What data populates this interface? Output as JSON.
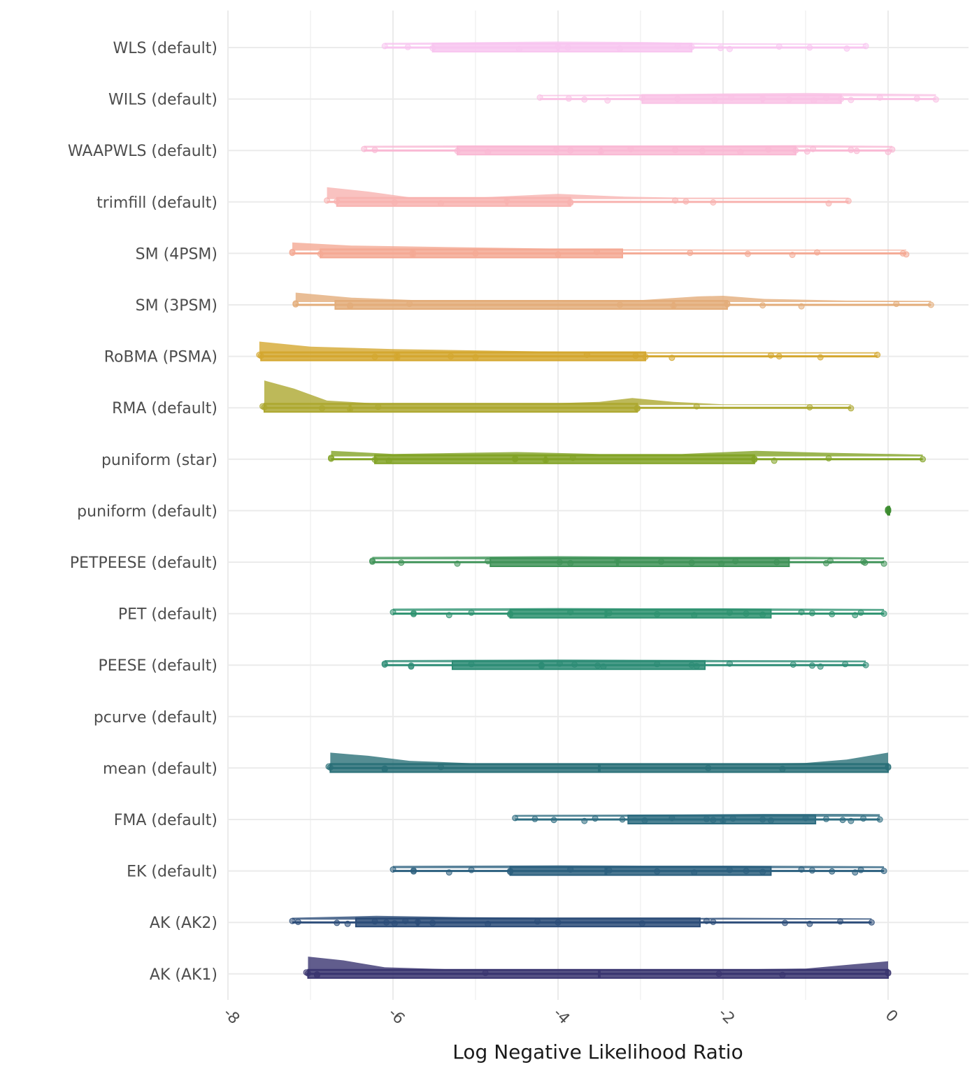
{
  "chart_data": {
    "type": "raincloud",
    "title": "",
    "xlabel": "Log Negative Likelihood Ratio",
    "ylabel": "",
    "xlim": [
      -8,
      1
    ],
    "x_ticks": [
      -8,
      -6,
      -4,
      -2,
      0
    ],
    "x_tick_labels": [
      "-8",
      "-6",
      "-4",
      "-2",
      "0"
    ],
    "grid": true,
    "legend": "none",
    "categories": [
      "WLS (default)",
      "WILS (default)",
      "WAAPWLS (default)",
      "trimfill (default)",
      "SM (4PSM)",
      "SM (3PSM)",
      "RoBMA (PSMA)",
      "RMA (default)",
      "puniform (star)",
      "puniform (default)",
      "PETPEESE (default)",
      "PET (default)",
      "PEESE (default)",
      "pcurve (default)",
      "mean (default)",
      "FMA (default)",
      "EK (default)",
      "AK (AK2)",
      "AK (AK1)"
    ],
    "series": [
      {
        "name": "WLS (default)",
        "color": "#F8C6F0",
        "min": -6.1,
        "q1": -5.52,
        "median": -4.0,
        "q3": -2.38,
        "max": -0.27,
        "points": [
          -6.1,
          -5.82,
          -5.52,
          -4.47,
          -4.0,
          -3.88,
          -3.25,
          -2.55,
          -2.38,
          -2.03,
          -1.92,
          -1.32,
          -0.95,
          -0.5,
          -0.27
        ],
        "density": [
          [
            -6.1,
            0.15
          ],
          [
            -5.0,
            0.2
          ],
          [
            -4.0,
            0.26
          ],
          [
            -3.0,
            0.22
          ],
          [
            -2.0,
            0.12
          ],
          [
            -1.0,
            0.1
          ],
          [
            -0.27,
            0.08
          ]
        ]
      },
      {
        "name": "WILS (default)",
        "color": "#F9C2E5",
        "min": -4.22,
        "q1": -2.98,
        "median": -1.52,
        "q3": -0.57,
        "max": 0.58,
        "points": [
          -4.22,
          -3.87,
          -3.68,
          -3.4,
          -2.98,
          -2.55,
          -2.1,
          -1.9,
          -1.52,
          -1.2,
          -0.9,
          -0.75,
          -0.57,
          -0.45,
          -0.1,
          0.35,
          0.58
        ],
        "density": [
          [
            -4.22,
            0.1
          ],
          [
            -3.0,
            0.15
          ],
          [
            -2.0,
            0.22
          ],
          [
            -1.0,
            0.26
          ],
          [
            0.0,
            0.2
          ],
          [
            0.58,
            0.16
          ]
        ]
      },
      {
        "name": "WAAPWLS (default)",
        "color": "#F9B8D4",
        "min": -6.35,
        "q1": -5.22,
        "median": -3.48,
        "q3": -1.12,
        "max": 0.05,
        "points": [
          -6.35,
          -6.22,
          -5.22,
          -4.85,
          -4.02,
          -3.85,
          -3.48,
          -3.12,
          -2.58,
          -2.25,
          -1.79,
          -1.45,
          -1.12,
          -0.98,
          -0.91,
          -0.45,
          -0.38,
          0.0,
          0.05
        ],
        "density": [
          [
            -6.35,
            0.15
          ],
          [
            -5.0,
            0.18
          ],
          [
            -4.0,
            0.17
          ],
          [
            -3.0,
            0.17
          ],
          [
            -2.0,
            0.18
          ],
          [
            -1.0,
            0.2
          ],
          [
            0.05,
            0.14
          ]
        ]
      },
      {
        "name": "trimfill (default)",
        "color": "#F8B3B0",
        "min": -6.8,
        "q1": -6.68,
        "median": -4.62,
        "q3": -3.85,
        "max": -0.48,
        "points": [
          -6.8,
          -6.68,
          -5.98,
          -5.42,
          -4.62,
          -3.85,
          -3.85,
          -2.58,
          -2.45,
          -2.12,
          -0.72,
          -0.48
        ],
        "density": [
          [
            -6.8,
            0.95
          ],
          [
            -6.3,
            0.6
          ],
          [
            -5.8,
            0.15
          ],
          [
            -5.0,
            0.12
          ],
          [
            -4.0,
            0.42
          ],
          [
            -3.2,
            0.2
          ],
          [
            -2.5,
            0.12
          ],
          [
            -1.5,
            0.12
          ],
          [
            -0.48,
            0.12
          ]
        ]
      },
      {
        "name": "SM (4PSM)",
        "color": "#F4A994",
        "min": -7.22,
        "q1": -6.88,
        "median": -5.76,
        "q3": -3.22,
        "max": 0.22,
        "points": [
          -7.22,
          -7.22,
          -6.88,
          -5.76,
          -5.76,
          -5.0,
          -4.0,
          -3.53,
          -2.4,
          -1.7,
          -1.16,
          -0.86,
          0.18,
          0.22
        ],
        "density": [
          [
            -7.22,
            0.65
          ],
          [
            -6.5,
            0.4
          ],
          [
            -5.5,
            0.3
          ],
          [
            -4.5,
            0.2
          ],
          [
            -3.5,
            0.1
          ],
          [
            -2.0,
            0.08
          ],
          [
            0.22,
            0.08
          ]
        ]
      },
      {
        "name": "SM (3PSM)",
        "color": "#E3AD7A",
        "min": -7.18,
        "q1": -6.7,
        "median": -2.6,
        "q3": -1.95,
        "max": 0.52,
        "points": [
          -7.18,
          -7.18,
          -6.52,
          -6.52,
          -5.8,
          -3.25,
          -2.6,
          -1.95,
          -1.95,
          -1.52,
          -1.05,
          0.1,
          0.52
        ],
        "density": [
          [
            -7.18,
            0.75
          ],
          [
            -6.5,
            0.35
          ],
          [
            -5.5,
            0.1
          ],
          [
            -4.0,
            0.05
          ],
          [
            -3.0,
            0.15
          ],
          [
            -2.3,
            0.45
          ],
          [
            -2.0,
            0.5
          ],
          [
            -1.5,
            0.25
          ],
          [
            -0.5,
            0.12
          ],
          [
            0.52,
            0.1
          ]
        ]
      },
      {
        "name": "RoBMA (PSMA)",
        "color": "#D4A72F",
        "min": -7.62,
        "q1": -7.6,
        "median": -5.95,
        "q3": -2.94,
        "max": -0.13,
        "points": [
          -7.62,
          -7.6,
          -6.22,
          -5.95,
          -5.95,
          -5.3,
          -5.0,
          -3.65,
          -3.06,
          -2.94,
          -2.62,
          -1.42,
          -1.32,
          -0.82,
          -0.13
        ],
        "density": [
          [
            -7.62,
            0.95
          ],
          [
            -7.0,
            0.55
          ],
          [
            -6.0,
            0.35
          ],
          [
            -5.0,
            0.25
          ],
          [
            -4.0,
            0.15
          ],
          [
            -3.0,
            0.1
          ],
          [
            -1.5,
            0.1
          ],
          [
            -0.13,
            0.1
          ]
        ]
      },
      {
        "name": "RMA (default)",
        "color": "#ADA830",
        "min": -7.58,
        "q1": -7.56,
        "median": -6.52,
        "q3": -3.04,
        "max": -0.45,
        "points": [
          -7.58,
          -7.56,
          -6.86,
          -6.52,
          -6.18,
          -3.04,
          -3.04,
          -2.32,
          -0.95,
          -0.45
        ],
        "density": [
          [
            -7.56,
            1.95
          ],
          [
            -7.2,
            1.3
          ],
          [
            -6.8,
            0.35
          ],
          [
            -6.0,
            0.05
          ],
          [
            -4.5,
            0.05
          ],
          [
            -3.5,
            0.25
          ],
          [
            -3.1,
            0.55
          ],
          [
            -2.6,
            0.25
          ],
          [
            -2.0,
            0.05
          ],
          [
            -0.45,
            0.05
          ]
        ]
      },
      {
        "name": "puniform (star)",
        "color": "#82A326",
        "min": -6.75,
        "q1": -6.22,
        "median": -4.15,
        "q3": -1.62,
        "max": 0.42,
        "points": [
          -6.75,
          -6.75,
          -6.22,
          -6.05,
          -4.52,
          -4.52,
          -4.15,
          -3.82,
          -1.62,
          -1.62,
          -1.38,
          -0.72,
          0.42
        ],
        "density": [
          [
            -6.75,
            0.45
          ],
          [
            -6.0,
            0.2
          ],
          [
            -5.0,
            0.3
          ],
          [
            -4.5,
            0.35
          ],
          [
            -3.5,
            0.2
          ],
          [
            -2.5,
            0.2
          ],
          [
            -1.6,
            0.45
          ],
          [
            -0.8,
            0.3
          ],
          [
            0.42,
            0.15
          ]
        ]
      },
      {
        "name": "puniform (default)",
        "color": "#3D8C30",
        "min": 0.0,
        "q1": 0.0,
        "median": 0.0,
        "q3": 0.0,
        "max": 0.0,
        "points": [
          0.0,
          0.0,
          0.0
        ],
        "density": []
      },
      {
        "name": "PETPEESE (default)",
        "color": "#3F9358",
        "min": -6.25,
        "q1": -4.82,
        "median": -3.28,
        "q3": -1.2,
        "max": -0.05,
        "points": [
          -6.25,
          -6.25,
          -5.9,
          -5.22,
          -4.85,
          -3.98,
          -3.85,
          -3.28,
          -2.75,
          -2.38,
          -2.02,
          -1.85,
          -1.35,
          -0.75,
          -0.7,
          -0.3,
          -0.28,
          -0.05
        ],
        "density": [
          [
            -6.25,
            0.2
          ],
          [
            -5.0,
            0.22
          ],
          [
            -4.0,
            0.26
          ],
          [
            -3.0,
            0.22
          ],
          [
            -2.0,
            0.2
          ],
          [
            -1.0,
            0.2
          ],
          [
            -0.05,
            0.16
          ]
        ]
      },
      {
        "name": "PET (default)",
        "color": "#2E9270",
        "min": -6.0,
        "q1": -4.58,
        "median": -3.42,
        "q3": -1.42,
        "max": -0.05,
        "points": [
          -6.0,
          -5.75,
          -5.75,
          -5.32,
          -5.05,
          -4.58,
          -4.58,
          -3.85,
          -3.38,
          -2.8,
          -2.35,
          -1.92,
          -1.72,
          -1.52,
          -1.05,
          -0.92,
          -0.68,
          -0.4,
          -0.33,
          -0.05
        ],
        "density": [
          [
            -6.0,
            0.18
          ],
          [
            -5.0,
            0.2
          ],
          [
            -4.0,
            0.22
          ],
          [
            -3.0,
            0.2
          ],
          [
            -2.0,
            0.2
          ],
          [
            -1.0,
            0.18
          ],
          [
            -0.05,
            0.15
          ]
        ]
      },
      {
        "name": "PEESE (default)",
        "color": "#2D8C75",
        "min": -6.1,
        "q1": -5.28,
        "median": -4.2,
        "q3": -2.22,
        "max": -0.27,
        "points": [
          -6.1,
          -6.1,
          -5.78,
          -5.78,
          -5.05,
          -4.2,
          -4.2,
          -3.98,
          -3.8,
          -3.52,
          -3.45,
          -2.8,
          -2.38,
          -2.32,
          -1.92,
          -1.15,
          -0.92,
          -0.82,
          -0.52,
          -0.27
        ],
        "density": [
          [
            -6.1,
            0.18
          ],
          [
            -5.0,
            0.2
          ],
          [
            -4.0,
            0.22
          ],
          [
            -3.0,
            0.2
          ],
          [
            -2.0,
            0.18
          ],
          [
            -1.0,
            0.16
          ],
          [
            -0.27,
            0.14
          ]
        ]
      },
      {
        "name": "pcurve (default)",
        "color": "#2A7F7F",
        "min": null,
        "q1": null,
        "median": null,
        "q3": null,
        "max": null,
        "points": [],
        "density": []
      },
      {
        "name": "mean (default)",
        "color": "#2A7078",
        "min": -6.78,
        "q1": -6.76,
        "median": -3.5,
        "q3": 0.0,
        "max": 0.0,
        "points": [
          -6.78,
          -6.76,
          -6.1,
          -6.1,
          -5.42,
          -2.18,
          -1.28,
          0.0,
          0.0
        ],
        "density": [
          [
            -6.76,
            1.0
          ],
          [
            -6.3,
            0.75
          ],
          [
            -5.8,
            0.35
          ],
          [
            -5.0,
            0.15
          ],
          [
            -3.5,
            0.1
          ],
          [
            -2.0,
            0.12
          ],
          [
            -1.0,
            0.18
          ],
          [
            -0.5,
            0.45
          ],
          [
            0.0,
            1.0
          ]
        ]
      },
      {
        "name": "FMA (default)",
        "color": "#2D6C80",
        "min": -4.52,
        "q1": -3.15,
        "median": -2.0,
        "q3": -0.88,
        "max": -0.1,
        "points": [
          -4.52,
          -4.28,
          -4.05,
          -3.68,
          -3.55,
          -3.22,
          -2.95,
          -2.62,
          -2.2,
          -2.12,
          -2.0,
          -1.88,
          -1.52,
          -1.42,
          -1.0,
          -0.75,
          -0.55,
          -0.45,
          -0.3,
          -0.1
        ],
        "density": [
          [
            -4.52,
            0.14
          ],
          [
            -3.5,
            0.16
          ],
          [
            -2.5,
            0.18
          ],
          [
            -1.5,
            0.22
          ],
          [
            -0.5,
            0.22
          ],
          [
            -0.1,
            0.2
          ]
        ]
      },
      {
        "name": "EK (default)",
        "color": "#2B5F7E",
        "min": -6.0,
        "q1": -4.58,
        "median": -3.42,
        "q3": -1.42,
        "max": -0.05,
        "points": [
          -6.0,
          -5.75,
          -5.75,
          -5.32,
          -5.05,
          -4.58,
          -4.58,
          -3.85,
          -3.38,
          -2.8,
          -2.35,
          -1.92,
          -1.72,
          -1.52,
          -1.05,
          -0.92,
          -0.68,
          -0.4,
          -0.33,
          -0.05
        ],
        "density": [
          [
            -6.0,
            0.18
          ],
          [
            -5.0,
            0.2
          ],
          [
            -4.0,
            0.22
          ],
          [
            -3.0,
            0.2
          ],
          [
            -2.0,
            0.2
          ],
          [
            -1.0,
            0.18
          ],
          [
            -0.05,
            0.15
          ]
        ]
      },
      {
        "name": "AK (AK2)",
        "color": "#2C4C78",
        "min": -7.22,
        "q1": -6.45,
        "median": -5.7,
        "q3": -2.28,
        "max": -0.2,
        "points": [
          -7.22,
          -7.15,
          -6.68,
          -6.55,
          -6.22,
          -6.08,
          -5.98,
          -5.85,
          -5.7,
          -5.52,
          -4.85,
          -4.25,
          -4.0,
          -2.98,
          -2.2,
          -2.12,
          -1.25,
          -0.95,
          -0.58,
          -0.2
        ],
        "density": [
          [
            -7.22,
            0.15
          ],
          [
            -6.2,
            0.3
          ],
          [
            -5.2,
            0.2
          ],
          [
            -4.2,
            0.15
          ],
          [
            -3.0,
            0.1
          ],
          [
            -2.0,
            0.15
          ],
          [
            -1.0,
            0.12
          ],
          [
            -0.2,
            0.1
          ]
        ]
      },
      {
        "name": "AK (AK1)",
        "color": "#3A3570",
        "min": -7.05,
        "q1": -7.03,
        "median": -3.5,
        "q3": 0.0,
        "max": 0.0,
        "points": [
          -7.05,
          -7.03,
          -6.92,
          -6.92,
          -4.88,
          -2.05,
          -1.28,
          0.0,
          0.0
        ],
        "density": [
          [
            -7.03,
            1.15
          ],
          [
            -6.6,
            0.85
          ],
          [
            -6.1,
            0.3
          ],
          [
            -5.0,
            0.08
          ],
          [
            -3.5,
            0.05
          ],
          [
            -2.0,
            0.12
          ],
          [
            -1.0,
            0.2
          ],
          [
            -0.4,
            0.55
          ],
          [
            0.0,
            0.78
          ]
        ]
      }
    ]
  }
}
